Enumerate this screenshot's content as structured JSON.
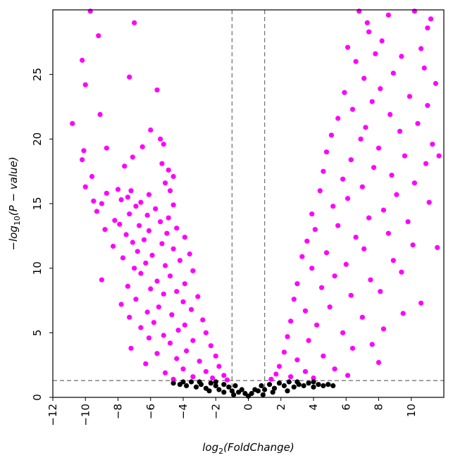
{
  "chart_data": {
    "type": "scatter",
    "title": "",
    "xlabel": {
      "prefix": "log",
      "sub": "2",
      "suffix": "(FoldChange)"
    },
    "ylabel": {
      "prefix": "−log",
      "sub": "10",
      "suffix": "(P − value)"
    },
    "xlim": [
      -12,
      12
    ],
    "ylim": [
      0,
      30
    ],
    "xticks": [
      -12,
      -10,
      -8,
      -6,
      -4,
      -2,
      0,
      2,
      4,
      6,
      8,
      10
    ],
    "yticks": [
      0,
      5,
      10,
      15,
      20,
      25
    ],
    "fold_change_threshold": [
      -1,
      1
    ],
    "pvalue_threshold_neglog10": 1.3,
    "colors": {
      "significant": "#ff00ff",
      "not_significant": "#000000",
      "threshold_line": "#777777"
    },
    "series": [
      {
        "significance": "significant",
        "points": [
          [
            -9.7,
            29.9
          ],
          [
            -7.0,
            29.0
          ],
          [
            -9.2,
            28.0
          ],
          [
            -10.2,
            26.1
          ],
          [
            -7.3,
            24.8
          ],
          [
            -10.0,
            24.2
          ],
          [
            -5.6,
            23.8
          ],
          [
            -9.1,
            21.9
          ],
          [
            -10.8,
            21.2
          ],
          [
            -6.0,
            20.7
          ],
          [
            -5.4,
            20.0
          ],
          [
            -5.2,
            19.6
          ],
          [
            -6.5,
            19.4
          ],
          [
            -8.7,
            19.3
          ],
          [
            -10.1,
            19.1
          ],
          [
            -7.1,
            18.6
          ],
          [
            -10.2,
            18.4
          ],
          [
            -5.3,
            18.1
          ],
          [
            -7.6,
            17.9
          ],
          [
            -4.9,
            17.6
          ],
          [
            -4.6,
            17.1
          ],
          [
            -9.6,
            17.1
          ],
          [
            -5.1,
            16.6
          ],
          [
            -10.0,
            16.3
          ],
          [
            -8.0,
            16.1
          ],
          [
            -7.2,
            16.0
          ],
          [
            -4.8,
            16.0
          ],
          [
            -8.7,
            15.8
          ],
          [
            -6.1,
            15.7
          ],
          [
            -7.4,
            15.5
          ],
          [
            -7.8,
            15.3
          ],
          [
            -9.5,
            15.2
          ],
          [
            -6.6,
            15.1
          ],
          [
            -9.0,
            15.0
          ],
          [
            -4.6,
            14.9
          ],
          [
            -6.9,
            14.8
          ],
          [
            -5.7,
            14.6
          ],
          [
            -9.3,
            14.4
          ],
          [
            -7.3,
            14.2
          ],
          [
            -6.2,
            14.1
          ],
          [
            -4.9,
            13.9
          ],
          [
            -8.2,
            13.7
          ],
          [
            -5.4,
            13.6
          ],
          [
            -7.9,
            13.4
          ],
          [
            -6.7,
            13.3
          ],
          [
            -4.4,
            13.1
          ],
          [
            -8.8,
            13.0
          ],
          [
            -6.1,
            12.9
          ],
          [
            -5.0,
            12.7
          ],
          [
            -7.5,
            12.6
          ],
          [
            -3.9,
            12.4
          ],
          [
            -6.4,
            12.2
          ],
          [
            -7.1,
            12.0
          ],
          [
            -5.3,
            11.9
          ],
          [
            -8.3,
            11.7
          ],
          [
            -4.6,
            11.5
          ],
          [
            -6.8,
            11.3
          ],
          [
            -3.6,
            11.1
          ],
          [
            -5.9,
            11.0
          ],
          [
            -7.7,
            10.8
          ],
          [
            -4.2,
            10.6
          ],
          [
            -6.3,
            10.4
          ],
          [
            -5.1,
            10.2
          ],
          [
            -7.0,
            10.0
          ],
          [
            -3.4,
            9.8
          ],
          [
            -6.6,
            9.6
          ],
          [
            -4.8,
            9.4
          ],
          [
            -9.0,
            9.1
          ],
          [
            -5.6,
            9.0
          ],
          [
            -3.9,
            8.8
          ],
          [
            -7.4,
            8.6
          ],
          [
            -6.0,
            8.4
          ],
          [
            -4.4,
            8.2
          ],
          [
            -5.2,
            8.0
          ],
          [
            -3.1,
            7.8
          ],
          [
            -6.9,
            7.6
          ],
          [
            -4.0,
            7.4
          ],
          [
            -7.8,
            7.2
          ],
          [
            -5.5,
            7.0
          ],
          [
            -3.5,
            6.8
          ],
          [
            -6.2,
            6.6
          ],
          [
            -4.7,
            6.4
          ],
          [
            -7.3,
            6.2
          ],
          [
            -2.8,
            6.0
          ],
          [
            -5.8,
            5.8
          ],
          [
            -3.9,
            5.6
          ],
          [
            -6.6,
            5.4
          ],
          [
            -4.3,
            5.2
          ],
          [
            -2.6,
            5.0
          ],
          [
            -5.2,
            4.8
          ],
          [
            -6.1,
            4.6
          ],
          [
            -3.4,
            4.4
          ],
          [
            -4.8,
            4.2
          ],
          [
            -2.3,
            4.0
          ],
          [
            -7.2,
            3.8
          ],
          [
            -3.8,
            3.6
          ],
          [
            -5.6,
            3.4
          ],
          [
            -2.0,
            3.2
          ],
          [
            -4.4,
            3.0
          ],
          [
            -3.0,
            2.8
          ],
          [
            -6.3,
            2.6
          ],
          [
            -1.8,
            2.4
          ],
          [
            -4.0,
            2.2
          ],
          [
            -2.6,
            2.0
          ],
          [
            -5.1,
            1.9
          ],
          [
            -1.5,
            1.7
          ],
          [
            -3.4,
            1.6
          ],
          [
            -2.2,
            1.5
          ],
          [
            -4.6,
            1.4
          ],
          [
            -1.3,
            1.35
          ],
          [
            6.8,
            29.9
          ],
          [
            8.6,
            29.6
          ],
          [
            10.2,
            29.9
          ],
          [
            11.2,
            29.3
          ],
          [
            7.3,
            29.0
          ],
          [
            11.0,
            28.6
          ],
          [
            7.4,
            28.3
          ],
          [
            8.2,
            27.6
          ],
          [
            6.1,
            27.1
          ],
          [
            10.6,
            27.0
          ],
          [
            7.8,
            26.6
          ],
          [
            9.4,
            26.4
          ],
          [
            6.6,
            26.0
          ],
          [
            10.8,
            25.5
          ],
          [
            8.9,
            25.1
          ],
          [
            7.1,
            24.7
          ],
          [
            11.5,
            24.3
          ],
          [
            8.1,
            23.9
          ],
          [
            5.9,
            23.6
          ],
          [
            9.9,
            23.3
          ],
          [
            7.6,
            22.9
          ],
          [
            11.0,
            22.6
          ],
          [
            6.4,
            22.3
          ],
          [
            8.7,
            21.9
          ],
          [
            5.5,
            21.6
          ],
          [
            10.4,
            21.2
          ],
          [
            7.2,
            20.9
          ],
          [
            9.3,
            20.6
          ],
          [
            5.1,
            20.3
          ],
          [
            6.9,
            20.0
          ],
          [
            11.3,
            19.6
          ],
          [
            8.0,
            19.3
          ],
          [
            4.8,
            19.0
          ],
          [
            9.6,
            18.7
          ],
          [
            6.3,
            18.4
          ],
          [
            10.9,
            18.1
          ],
          [
            7.7,
            17.8
          ],
          [
            4.6,
            17.5
          ],
          [
            8.8,
            17.2
          ],
          [
            5.8,
            16.9
          ],
          [
            10.2,
            16.6
          ],
          [
            7.0,
            16.3
          ],
          [
            4.4,
            16.0
          ],
          [
            9.1,
            15.7
          ],
          [
            6.1,
            15.4
          ],
          [
            11.1,
            15.1
          ],
          [
            5.2,
            14.8
          ],
          [
            8.3,
            14.5
          ],
          [
            3.9,
            14.2
          ],
          [
            7.4,
            13.9
          ],
          [
            9.8,
            13.6
          ],
          [
            5.5,
            13.3
          ],
          [
            4.1,
            13.0
          ],
          [
            8.6,
            12.7
          ],
          [
            6.6,
            12.4
          ],
          [
            3.6,
            12.1
          ],
          [
            10.1,
            11.8
          ],
          [
            7.1,
            11.5
          ],
          [
            4.8,
            11.2
          ],
          [
            3.3,
            10.9
          ],
          [
            8.9,
            10.6
          ],
          [
            6.0,
            10.3
          ],
          [
            3.9,
            10.0
          ],
          [
            9.4,
            9.7
          ],
          [
            5.3,
            9.4
          ],
          [
            7.5,
            9.1
          ],
          [
            3.0,
            8.8
          ],
          [
            4.5,
            8.5
          ],
          [
            8.1,
            8.2
          ],
          [
            6.3,
            7.9
          ],
          [
            2.8,
            7.6
          ],
          [
            10.6,
            7.3
          ],
          [
            5.0,
            7.0
          ],
          [
            3.5,
            6.7
          ],
          [
            9.5,
            6.5
          ],
          [
            7.0,
            6.2
          ],
          [
            2.6,
            5.9
          ],
          [
            4.2,
            5.6
          ],
          [
            8.3,
            5.3
          ],
          [
            5.8,
            5.0
          ],
          [
            2.4,
            4.7
          ],
          [
            3.7,
            4.4
          ],
          [
            7.6,
            4.1
          ],
          [
            6.4,
            3.8
          ],
          [
            2.2,
            3.5
          ],
          [
            4.6,
            3.2
          ],
          [
            3.0,
            2.9
          ],
          [
            8.0,
            2.7
          ],
          [
            1.9,
            2.4
          ],
          [
            5.3,
            2.2
          ],
          [
            3.5,
            2.0
          ],
          [
            1.7,
            1.8
          ],
          [
            6.1,
            1.7
          ],
          [
            2.6,
            1.6
          ],
          [
            4.0,
            1.5
          ],
          [
            1.4,
            1.4
          ],
          [
            11.7,
            18.7
          ],
          [
            11.6,
            11.6
          ]
        ]
      },
      {
        "significance": "not_significant",
        "points": [
          [
            -4.6,
            1.1
          ],
          [
            -4.2,
            1.0
          ],
          [
            -3.8,
            0.9
          ],
          [
            -3.5,
            1.2
          ],
          [
            -3.2,
            0.8
          ],
          [
            -2.9,
            1.0
          ],
          [
            -2.6,
            0.7
          ],
          [
            -2.3,
            1.1
          ],
          [
            -2.0,
            0.9
          ],
          [
            -1.8,
            0.6
          ],
          [
            -1.5,
            1.0
          ],
          [
            -1.2,
            0.8
          ],
          [
            -1.0,
            0.5
          ],
          [
            -0.8,
            0.9
          ],
          [
            -0.6,
            0.4
          ],
          [
            -0.4,
            0.6
          ],
          [
            -0.2,
            0.3
          ],
          [
            0.0,
            0.1
          ],
          [
            0.2,
            0.3
          ],
          [
            0.4,
            0.6
          ],
          [
            0.6,
            0.5
          ],
          [
            0.8,
            0.9
          ],
          [
            1.0,
            0.6
          ],
          [
            1.3,
            1.0
          ],
          [
            1.6,
            0.7
          ],
          [
            1.9,
            1.1
          ],
          [
            2.2,
            0.9
          ],
          [
            2.5,
            1.2
          ],
          [
            2.8,
            0.8
          ],
          [
            3.1,
            1.0
          ],
          [
            3.4,
            0.9
          ],
          [
            3.7,
            1.1
          ],
          [
            4.0,
            0.8
          ],
          [
            4.3,
            1.0
          ],
          [
            4.6,
            0.9
          ],
          [
            4.9,
            1.0
          ],
          [
            5.2,
            0.9
          ],
          [
            -4.0,
            1.2
          ],
          [
            -3.0,
            1.2
          ],
          [
            -2.0,
            1.2
          ],
          [
            3.0,
            1.2
          ],
          [
            4.0,
            1.2
          ],
          [
            -1.5,
            0.4
          ],
          [
            1.5,
            0.4
          ],
          [
            -0.9,
            0.2
          ],
          [
            0.9,
            0.2
          ],
          [
            -2.4,
            0.5
          ],
          [
            2.4,
            0.5
          ]
        ]
      }
    ]
  }
}
